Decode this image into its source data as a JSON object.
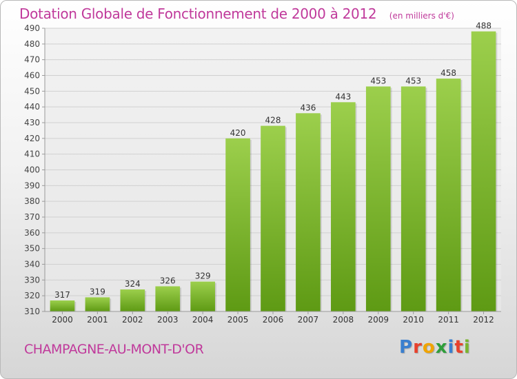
{
  "header": {
    "title": "Dotation Globale de Fonctionnement de 2000 à 2012",
    "unit": "(en milliers d'€)"
  },
  "footer": {
    "commune": "CHAMPAGNE-AU-MONT-D'OR"
  },
  "logo": {
    "letters": [
      "P",
      "r",
      "o",
      "x",
      "i",
      "t",
      "i"
    ],
    "colors": [
      "#3a7fcf",
      "#e8412c",
      "#f0a400",
      "#2e9e3a",
      "#3a7fcf",
      "#e8412c",
      "#7ab52f"
    ]
  },
  "chart_data": {
    "type": "bar",
    "categories": [
      "2000",
      "2001",
      "2002",
      "2003",
      "2004",
      "2005",
      "2006",
      "2007",
      "2008",
      "2009",
      "2010",
      "2011",
      "2012"
    ],
    "values": [
      317,
      319,
      324,
      326,
      329,
      420,
      428,
      436,
      443,
      453,
      453,
      458,
      488
    ],
    "ylim": [
      310,
      490
    ],
    "yticks": [
      310,
      320,
      330,
      340,
      350,
      360,
      370,
      380,
      390,
      400,
      410,
      420,
      430,
      440,
      450,
      460,
      470,
      480,
      490
    ],
    "grid": true,
    "bar_color_top": "#9ccf4c",
    "bar_color_bottom": "#5e9a14"
  }
}
